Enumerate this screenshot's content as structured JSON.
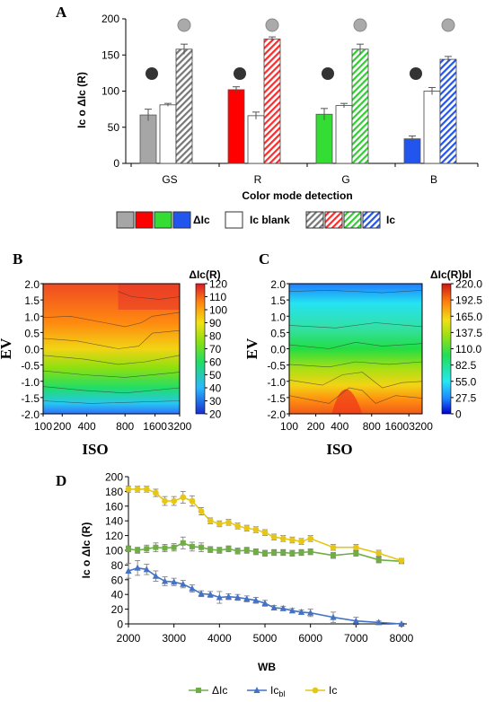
{
  "colors": {
    "gs": "#a6a6a6",
    "r": "#ff0000",
    "g": "#33dd33",
    "b": "#2255ee",
    "dIc_line": "#70ad47",
    "icbl_line": "#4472c4",
    "ic_line": "#e6c619"
  },
  "chart_data": [
    {
      "id": "A",
      "type": "bar",
      "panel_label": "A",
      "xlabel": "Color mode detection",
      "ylabel": "Ic  o ΔIc (R)",
      "ylim": [
        0,
        200
      ],
      "yticks": [
        0,
        50,
        100,
        150,
        200
      ],
      "categories": [
        "GS",
        "R",
        "G",
        "B"
      ],
      "series": [
        {
          "name": "ΔIc",
          "values": [
            67,
            102,
            68,
            34
          ],
          "errors": [
            8,
            4,
            8,
            4
          ]
        },
        {
          "name": "Ic blank",
          "values": [
            81,
            66,
            80,
            100
          ],
          "errors": [
            2,
            5,
            3,
            5
          ]
        },
        {
          "name": "Ic",
          "values": [
            158,
            172,
            158,
            144
          ],
          "errors": [
            7,
            3,
            7,
            4
          ]
        }
      ],
      "legend": {
        "dIc_label": "ΔIc",
        "blank_label": "Ic blank",
        "ic_label": "Ic"
      }
    },
    {
      "id": "B",
      "type": "heatmap",
      "panel_label": "B",
      "colorbar_title": "ΔIc(R)",
      "xlabel": "ISO",
      "ylabel": "EV",
      "x_ticks": [
        "100",
        "200",
        "400",
        "800",
        "1600",
        "3200"
      ],
      "y_ticks": [
        "2.0",
        "1.5",
        "1.0",
        "0.5",
        "0.0",
        "-0.5",
        "-1.0",
        "-1.5",
        "-2.0"
      ],
      "colorbar_ticks": [
        "120",
        "110",
        "100",
        "90",
        "80",
        "70",
        "60",
        "50",
        "40",
        "30",
        "20"
      ],
      "range": [
        20,
        120
      ]
    },
    {
      "id": "C",
      "type": "heatmap",
      "panel_label": "C",
      "colorbar_title": "ΔIc(R)bl",
      "xlabel": "ISO",
      "ylabel": "EV",
      "x_ticks": [
        "100",
        "200",
        "400",
        "800",
        "16003200"
      ],
      "y_ticks": [
        "2.0",
        "1.5",
        "1.0",
        "0.5",
        "0.0",
        "-0.5",
        "-1.0",
        "-1.5",
        "-2.0"
      ],
      "colorbar_ticks": [
        "220.0",
        "192.5",
        "165.0",
        "137.5",
        "110.0",
        "82.5",
        "55.0",
        "27.5",
        "0"
      ],
      "range": [
        0,
        220
      ]
    },
    {
      "id": "D",
      "type": "line",
      "panel_label": "D",
      "xlabel": "WB",
      "ylabel": "Ic  o ΔIc (R)",
      "xlim": [
        2000,
        8000
      ],
      "ylim": [
        0,
        200
      ],
      "xticks": [
        2000,
        3000,
        4000,
        5000,
        6000,
        7000,
        8000
      ],
      "yticks": [
        0,
        20,
        40,
        60,
        80,
        100,
        120,
        140,
        160,
        180,
        200
      ],
      "x": [
        2000,
        2200,
        2400,
        2600,
        2800,
        3000,
        3200,
        3400,
        3600,
        3800,
        4000,
        4200,
        4400,
        4600,
        4800,
        5000,
        5200,
        5400,
        5600,
        5800,
        6000,
        6500,
        7000,
        7500,
        8000
      ],
      "series": [
        {
          "name": "ΔIc",
          "values": [
            102,
            100,
            102,
            104,
            103,
            104,
            110,
            105,
            104,
            101,
            100,
            102,
            99,
            100,
            98,
            96,
            97,
            97,
            96,
            97,
            98,
            93,
            96,
            87,
            85
          ],
          "errors": [
            4,
            4,
            5,
            6,
            5,
            5,
            8,
            6,
            6,
            4,
            4,
            4,
            4,
            4,
            4,
            4,
            4,
            4,
            4,
            4,
            4,
            4,
            4,
            4,
            3
          ]
        },
        {
          "name": "Icbl",
          "name_main": "Ic",
          "name_sub": "bl",
          "values": [
            72,
            76,
            74,
            65,
            58,
            57,
            54,
            48,
            41,
            40,
            36,
            37,
            36,
            34,
            32,
            28,
            22,
            21,
            18,
            16,
            15,
            9,
            4,
            2,
            0
          ],
          "errors": [
            10,
            10,
            7,
            7,
            6,
            5,
            5,
            5,
            4,
            4,
            8,
            4,
            4,
            4,
            4,
            4,
            3,
            3,
            3,
            3,
            5,
            7,
            5,
            2,
            1
          ]
        },
        {
          "name": "Ic",
          "values": [
            183,
            183,
            183,
            178,
            167,
            167,
            172,
            167,
            153,
            140,
            136,
            138,
            133,
            130,
            128,
            124,
            118,
            116,
            114,
            112,
            116,
            104,
            104,
            96,
            86
          ],
          "errors": [
            4,
            4,
            4,
            5,
            6,
            6,
            8,
            7,
            5,
            4,
            4,
            4,
            4,
            4,
            4,
            4,
            4,
            4,
            4,
            4,
            4,
            4,
            4,
            4,
            3
          ]
        }
      ]
    }
  ]
}
